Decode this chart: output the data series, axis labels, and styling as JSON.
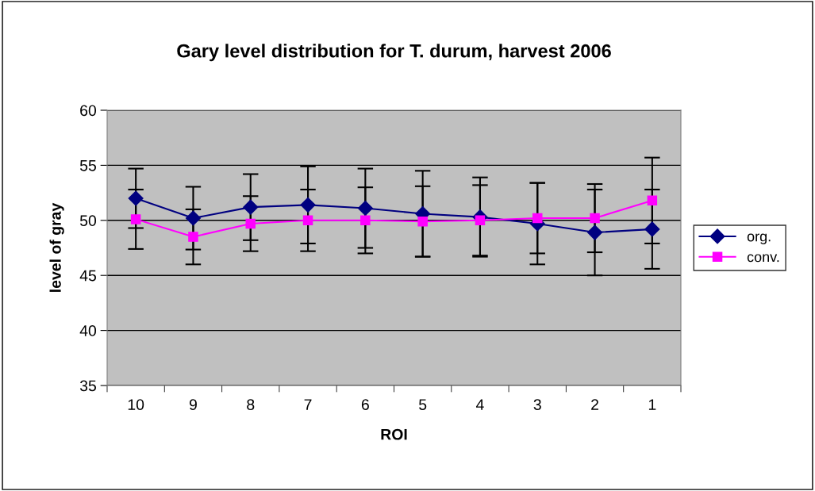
{
  "chart_data": {
    "type": "line",
    "title": "Gary level distribution for T. durum, harvest 2006",
    "xlabel": "ROI",
    "ylabel": "level of gray",
    "categories": [
      "10",
      "9",
      "8",
      "7",
      "6",
      "5",
      "4",
      "3",
      "2",
      "1"
    ],
    "series": [
      {
        "name": "org.",
        "color": "#000080",
        "marker": "diamond",
        "values": [
          52.0,
          50.2,
          51.2,
          51.4,
          51.1,
          50.6,
          50.3,
          49.7,
          48.9,
          49.2
        ],
        "errors": [
          2.7,
          2.85,
          3.0,
          3.5,
          3.6,
          3.9,
          3.6,
          3.7,
          3.9,
          3.6
        ]
      },
      {
        "name": "conv.",
        "color": "#ff00ff",
        "marker": "square",
        "values": [
          50.1,
          48.5,
          49.7,
          50.0,
          50.0,
          49.9,
          50.0,
          50.2,
          50.2,
          51.8
        ],
        "errors": [
          2.7,
          2.5,
          2.5,
          2.8,
          3.0,
          3.2,
          3.2,
          3.2,
          3.1,
          3.9
        ]
      }
    ],
    "ylim": [
      35,
      60
    ],
    "yticks": [
      35,
      40,
      45,
      50,
      55,
      60
    ],
    "grid": "y",
    "legend": "right",
    "line_style": "solid"
  }
}
